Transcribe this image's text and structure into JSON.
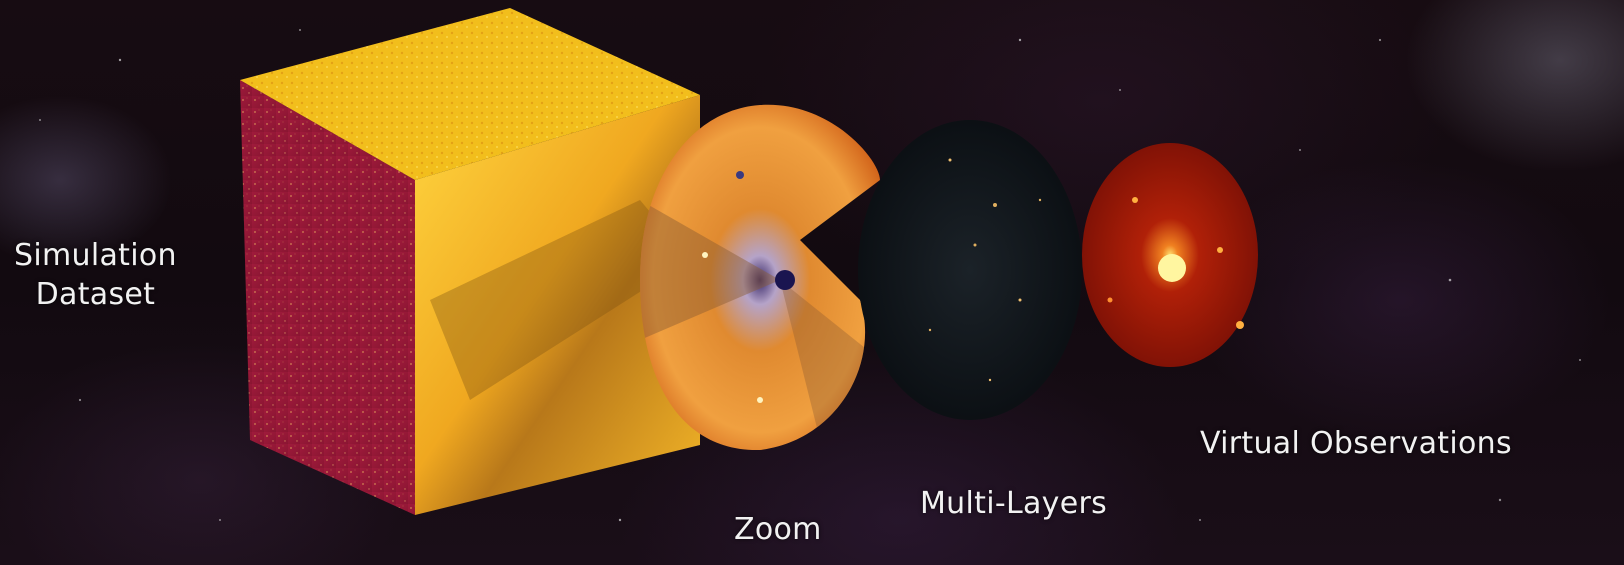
{
  "labels": {
    "simulation_line1": "Simulation",
    "simulation_line2": "Dataset",
    "zoom": "Zoom",
    "multi_layers": "Multi-Layers",
    "virtual_observations": "Virtual Observations"
  },
  "colors": {
    "background": "#150b12",
    "cube_top": "#f5c41a",
    "cube_left": "#9c1a3a",
    "cube_front": "#e8a520",
    "zoom_disc": "#e07a20",
    "multilayer_disc": "#0e1418",
    "observation_disc": "#a81e08",
    "label_text": "#f2f2f2"
  }
}
